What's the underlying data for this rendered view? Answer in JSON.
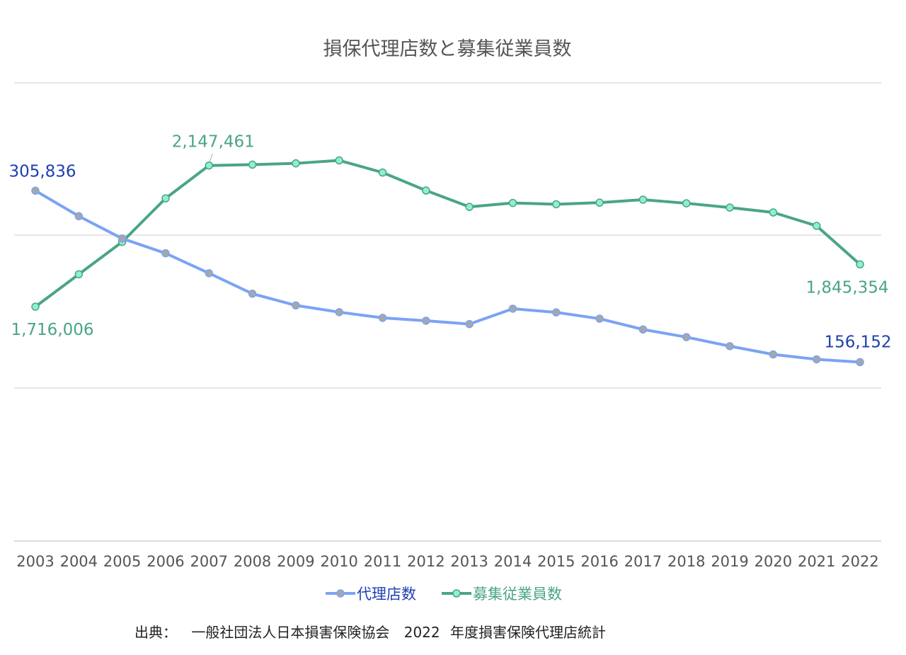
{
  "chart_data": {
    "type": "line",
    "title": "損保代理店数と募集従業員数",
    "xlabel": "",
    "ylabel": "",
    "categories": [
      "2003",
      "2004",
      "2005",
      "2006",
      "2007",
      "2008",
      "2009",
      "2010",
      "2011",
      "2012",
      "2013",
      "2014",
      "2015",
      "2016",
      "2017",
      "2018",
      "2019",
      "2020",
      "2021",
      "2022"
    ],
    "series": [
      {
        "name": "代理店数",
        "color": "#7ba3f5",
        "marker_color": "#a7a7a7",
        "label_color": "#1f3fb0",
        "axis": "right",
        "ylim": [
          0,
          400000
        ],
        "values": [
          305836,
          283600,
          264100,
          251200,
          233800,
          215900,
          205700,
          199800,
          194800,
          192300,
          189400,
          202800,
          199600,
          194100,
          184700,
          178000,
          170100,
          162900,
          158600,
          156152
        ],
        "labels": [
          {
            "index": 0,
            "text": "305,836"
          },
          {
            "index": 19,
            "text": "156,152"
          }
        ]
      },
      {
        "name": "募集従業員数",
        "color": "#4aa585",
        "marker_color": "#8ff0cc",
        "label_color": "#4aa585",
        "axis": "left",
        "ylim": [
          1000000,
          2400000
        ],
        "values": [
          1716006,
          1815000,
          1914000,
          2047000,
          2147461,
          2150000,
          2154000,
          2163000,
          2126000,
          2071000,
          2021000,
          2033000,
          2029000,
          2034000,
          2043000,
          2032000,
          2019000,
          2004000,
          1963000,
          1845354
        ],
        "labels": [
          {
            "index": 0,
            "text": "1,716,006"
          },
          {
            "index": 4,
            "text": "2,147,461"
          },
          {
            "index": 19,
            "text": "1,845,354"
          }
        ]
      }
    ],
    "grid": true,
    "legend": "bottom"
  },
  "source": {
    "prefix": "出典：",
    "org": "一般社団法人日本損害保険協会",
    "year": "2022",
    "report": "年度損害保険代理店統計"
  }
}
